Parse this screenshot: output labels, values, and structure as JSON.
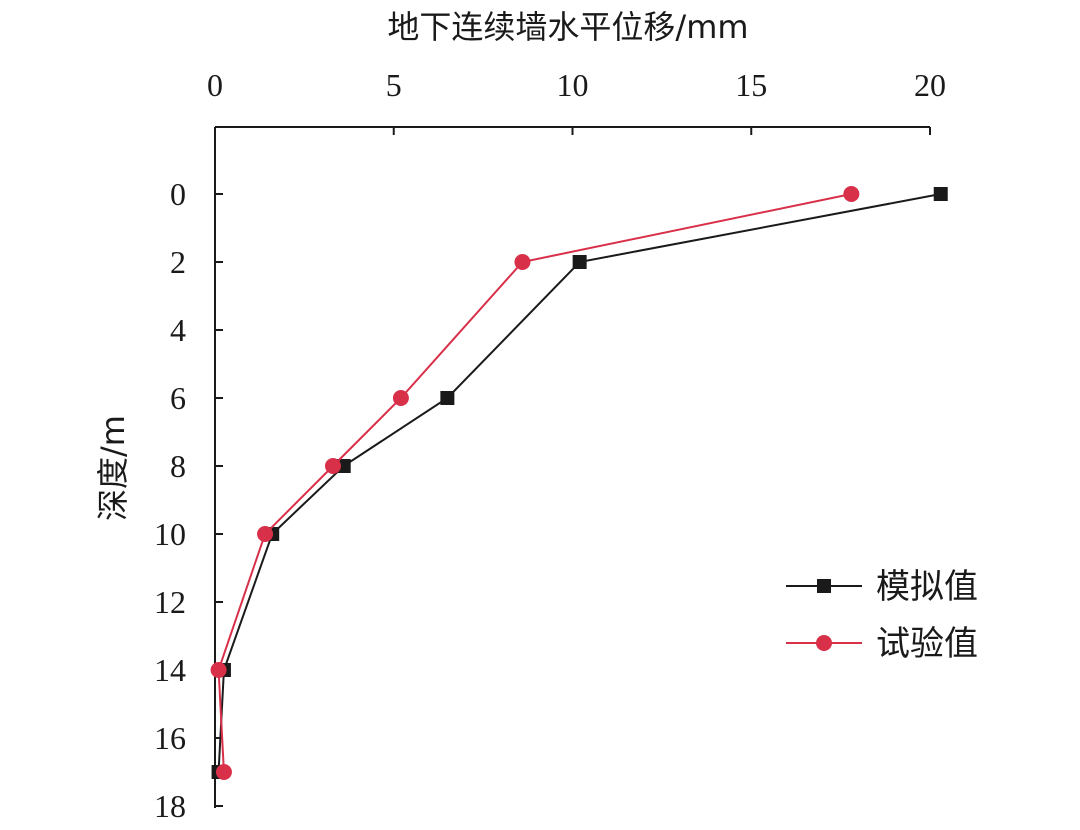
{
  "chart_data": {
    "type": "line",
    "xlabel": "地下连续墙水平位移/mm",
    "ylabel": "深度/m",
    "xlim": [
      0,
      20
    ],
    "ylim": [
      18,
      -2
    ],
    "x_axis_position": "top",
    "y_axis_inverted": true,
    "x_ticks": [
      "0",
      "5",
      "10",
      "15",
      "20"
    ],
    "y_ticks": [
      "0",
      "2",
      "4",
      "6",
      "8",
      "10",
      "12",
      "14",
      "16",
      "18"
    ],
    "legend_position": "lower-right",
    "grid": false,
    "series": [
      {
        "name": "模拟值",
        "color": "#1a1a1a",
        "marker": "square",
        "x": [
          20.3,
          10.2,
          6.5,
          3.6,
          1.6,
          0.25,
          0.1
        ],
        "y": [
          0,
          2,
          6,
          8,
          10,
          14,
          17
        ]
      },
      {
        "name": "试验值",
        "color": "#d9304a",
        "marker": "circle",
        "x": [
          17.8,
          8.6,
          5.2,
          3.3,
          1.4,
          0.1,
          0.25
        ],
        "y": [
          0,
          2,
          6,
          8,
          10,
          14,
          17
        ]
      }
    ]
  }
}
